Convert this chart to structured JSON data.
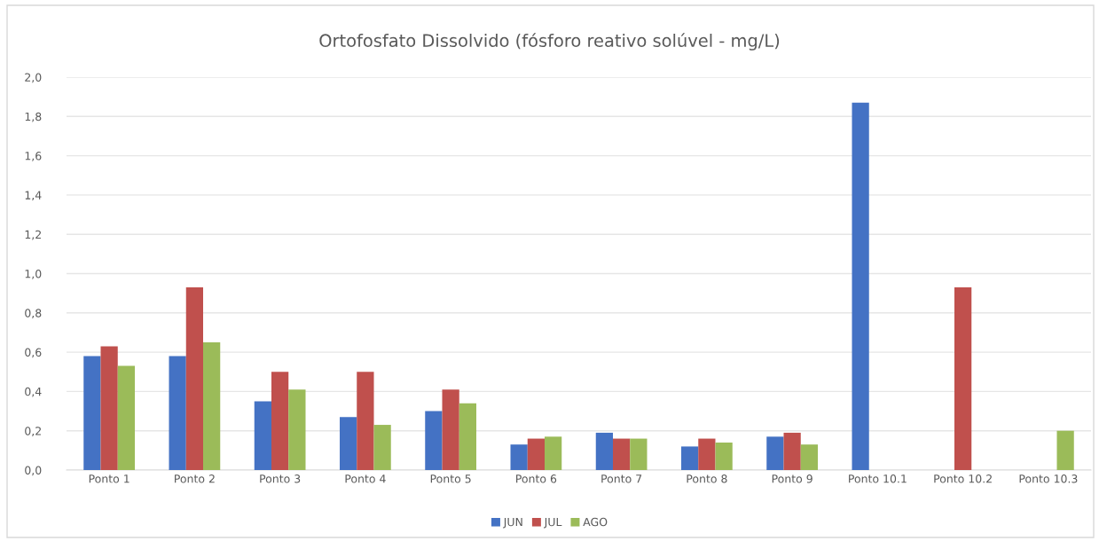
{
  "chart_data": {
    "type": "bar",
    "title": "Ortofosfato Dissolvido (fósforo reativo solúvel - mg/L)",
    "categories": [
      "Ponto 1",
      "Ponto 2",
      "Ponto 3",
      "Ponto 4",
      "Ponto 5",
      "Ponto 6",
      "Ponto 7",
      "Ponto 8",
      "Ponto 9",
      "Ponto 10.1",
      "Ponto 10.2",
      "Ponto 10.3"
    ],
    "series": [
      {
        "name": "JUN",
        "color": "#4472c4",
        "values": [
          0.58,
          0.58,
          0.35,
          0.27,
          0.3,
          0.13,
          0.19,
          0.12,
          0.17,
          1.87,
          null,
          null
        ]
      },
      {
        "name": "JUL",
        "color": "#c0504d",
        "values": [
          0.63,
          0.93,
          0.5,
          0.5,
          0.41,
          0.16,
          0.16,
          0.16,
          0.19,
          null,
          0.93,
          null
        ]
      },
      {
        "name": "AGO",
        "color": "#9bbb59",
        "values": [
          0.53,
          0.65,
          0.41,
          0.23,
          0.34,
          0.17,
          0.16,
          0.14,
          0.13,
          null,
          null,
          0.2
        ]
      }
    ],
    "ylim": [
      0,
      2
    ],
    "yticks": [
      {
        "value": 0,
        "label": "0,0"
      },
      {
        "value": 0.2,
        "label": "0,2"
      },
      {
        "value": 0.4,
        "label": "0,4"
      },
      {
        "value": 0.6,
        "label": "0,6"
      },
      {
        "value": 0.8,
        "label": "0,8"
      },
      {
        "value": 1.0,
        "label": "1,0"
      },
      {
        "value": 1.2,
        "label": "1,2"
      },
      {
        "value": 1.4,
        "label": "1,4"
      },
      {
        "value": 1.6,
        "label": "1,6"
      },
      {
        "value": 1.8,
        "label": "1,8"
      },
      {
        "value": 2.0,
        "label": "2,0"
      }
    ],
    "grid": "y",
    "legend": "bottom"
  }
}
